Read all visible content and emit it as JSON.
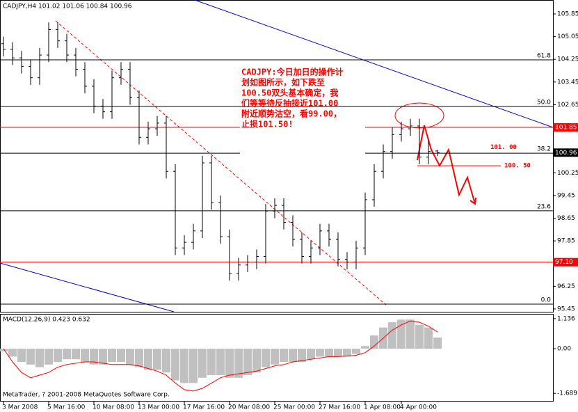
{
  "chart_data": {
    "type": "ohlc",
    "header": "CADJPY,H4 101.02 101.06 100.84 100.96",
    "indicator_label": "MACD(12,26,9) 0.423 0.632",
    "copyright": "MetaTrader, ? 2001-2008 MetaQuotes Software Corp.",
    "annotation": [
      "CADJPY:今日加日的操作计",
      "划如图所示，如下跌至",
      "100.50双头基本确定，我",
      "们等等待反抽接近101.00",
      "附近顺势沽空，看99.00，",
      "止损101.50!"
    ],
    "categories": [
      "3 Mar 2008",
      null,
      null,
      null,
      null,
      "5 Mar 16:00",
      null,
      null,
      null,
      null,
      "10 Mar 08:00",
      null,
      null,
      null,
      null,
      "13 Mar 00:00",
      null,
      null,
      null,
      null,
      "17 Mar 16:00",
      null,
      null,
      null,
      null,
      "20 Mar 08:00",
      null,
      null,
      null,
      null,
      "25 Mar 00:00",
      null,
      null,
      null,
      null,
      "27 Mar 16:00",
      null,
      null,
      null,
      null,
      "1 Apr 08:00",
      null,
      null,
      null,
      "4 Apr 00:00",
      null,
      null,
      null,
      null
    ],
    "open": [
      104.8,
      104.6,
      104.3,
      104.0,
      103.6,
      104.4,
      105.3,
      104.9,
      104.4,
      103.9,
      103.3,
      102.6,
      102.4,
      103.6,
      103.9,
      102.9,
      101.5,
      101.8,
      102.0,
      100.3,
      97.6,
      97.8,
      98.2,
      100.6,
      99.2,
      98.0,
      96.7,
      97.0,
      97.1,
      97.3,
      98.9,
      99.1,
      98.5,
      97.9,
      97.3,
      97.6,
      98.2,
      97.9,
      97.2,
      97.1,
      97.6,
      99.3,
      100.3,
      101.0,
      101.6,
      101.8,
      101.9,
      100.8,
      101.02
    ],
    "high": [
      105.05,
      104.85,
      104.55,
      104.25,
      104.65,
      105.55,
      105.55,
      105.15,
      104.65,
      104.15,
      103.55,
      102.85,
      103.85,
      104.15,
      104.15,
      103.15,
      102.05,
      102.25,
      102.25,
      100.55,
      98.05,
      98.45,
      100.85,
      100.85,
      99.45,
      98.25,
      97.25,
      97.35,
      97.55,
      99.15,
      99.35,
      99.35,
      98.75,
      98.15,
      97.85,
      98.45,
      98.45,
      98.15,
      97.45,
      97.85,
      99.55,
      100.55,
      101.25,
      101.85,
      102.05,
      102.15,
      102.15,
      101.4,
      101.06
    ],
    "low": [
      104.35,
      104.05,
      103.75,
      103.35,
      103.35,
      104.15,
      104.65,
      104.15,
      103.65,
      103.05,
      102.35,
      102.15,
      102.15,
      103.35,
      102.65,
      101.25,
      101.25,
      101.55,
      100.05,
      97.35,
      97.35,
      97.55,
      97.95,
      98.95,
      97.75,
      96.45,
      96.45,
      96.75,
      96.85,
      97.05,
      98.65,
      98.25,
      97.65,
      97.05,
      97.05,
      97.35,
      97.65,
      96.95,
      96.85,
      96.85,
      97.35,
      99.05,
      100.05,
      100.75,
      101.35,
      101.55,
      100.55,
      100.55,
      100.84
    ],
    "close": [
      104.6,
      104.3,
      104.0,
      103.6,
      104.4,
      105.3,
      104.9,
      104.4,
      103.9,
      103.3,
      102.6,
      102.4,
      103.6,
      103.9,
      102.9,
      101.5,
      101.8,
      102.0,
      100.3,
      97.6,
      97.8,
      98.2,
      100.6,
      99.2,
      98.0,
      96.7,
      97.0,
      97.1,
      97.3,
      98.9,
      99.1,
      98.5,
      97.9,
      97.3,
      97.6,
      98.2,
      97.9,
      97.2,
      97.1,
      97.6,
      99.3,
      100.3,
      101.0,
      101.6,
      101.8,
      101.9,
      100.8,
      101.0,
      100.96
    ],
    "color": "#000000",
    "ylim": [
      95.35,
      106.34
    ],
    "yticks": [
      105.85,
      105.05,
      104.25,
      103.45,
      102.65,
      100.25,
      99.45,
      98.65,
      97.85,
      96.25,
      95.45
    ],
    "marked_prices": [
      {
        "value": 101.85,
        "label": "101.85",
        "color": "#ff0000"
      },
      {
        "value": 97.1,
        "label": "97.10",
        "color": "#ff0000"
      },
      {
        "value": 100.96,
        "label": "100.96",
        "color": "#000000"
      }
    ],
    "fibo_levels": [
      {
        "level": "61.8",
        "price": 104.23
      },
      {
        "level": "50.0",
        "price": 102.59
      },
      {
        "level": "38.2",
        "price": 100.94
      },
      {
        "level": "23.6",
        "price": 98.91
      },
      {
        "level": "0.0",
        "price": 95.62
      }
    ],
    "price_notes": [
      {
        "value": 101.0,
        "label": "101. 00"
      },
      {
        "value": 100.5,
        "label": "100. 50"
      }
    ],
    "macd": {
      "histogram": [
        -0.1,
        -0.3,
        -0.5,
        -0.6,
        -0.7,
        -0.6,
        -0.5,
        -0.4,
        -0.4,
        -0.5,
        -0.6,
        -0.6,
        -0.5,
        -0.5,
        -0.6,
        -0.7,
        -0.8,
        -0.8,
        -0.9,
        -1.2,
        -1.3,
        -1.3,
        -1.1,
        -1.0,
        -1.0,
        -1.1,
        -1.1,
        -1.0,
        -0.9,
        -0.7,
        -0.6,
        -0.5,
        -0.5,
        -0.5,
        -0.4,
        -0.3,
        -0.3,
        -0.3,
        -0.3,
        -0.2,
        0.1,
        0.5,
        0.8,
        1.0,
        1.1,
        1.1,
        0.9,
        0.8,
        0.423
      ],
      "signal": [
        0.0,
        -0.5,
        -0.9,
        -1.1,
        -1.0,
        -0.9,
        -0.7,
        -0.6,
        -0.55,
        -0.5,
        -0.5,
        -0.55,
        -0.6,
        -0.6,
        -0.6,
        -0.65,
        -0.75,
        -0.85,
        -1.0,
        -1.3,
        -1.55,
        -1.6,
        -1.5,
        -1.3,
        -1.1,
        -1.0,
        -0.95,
        -0.9,
        -0.85,
        -0.75,
        -0.65,
        -0.6,
        -0.5,
        -0.45,
        -0.4,
        -0.35,
        -0.3,
        -0.3,
        -0.28,
        -0.25,
        -0.15,
        0.1,
        0.4,
        0.7,
        0.9,
        1.05,
        1.0,
        0.85,
        0.632
      ],
      "histogram_color": "#c0c0c0",
      "signal_color": "#ff0000",
      "ylim": [
        -2.0,
        1.29
      ],
      "yticks": [
        1.136,
        {
          "value": 0,
          "label": "0.00"
        },
        -1.689
      ]
    }
  }
}
